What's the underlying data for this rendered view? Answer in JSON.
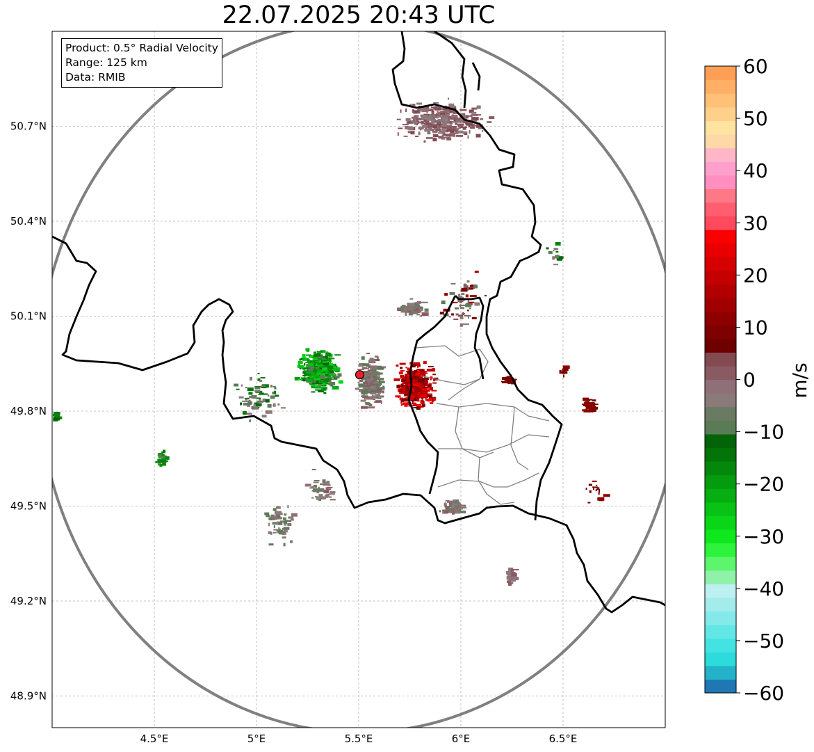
{
  "title": "22.07.2025 20:43 UTC",
  "info_box": {
    "product": "Product: 0.5° Radial Velocity",
    "range": "Range: 125 km",
    "data": "Data: RMIB"
  },
  "map": {
    "lon_range": [
      4.0,
      7.0
    ],
    "lat_range": [
      48.8,
      51.0
    ],
    "lon_ticks": [
      "4.5°E",
      "5°E",
      "5.5°E",
      "6°E",
      "6.5°E"
    ],
    "lat_ticks": [
      "50.7°N",
      "50.4°N",
      "50.1°N",
      "49.8°N",
      "49.5°N",
      "49.2°N",
      "48.9°N"
    ],
    "radar_site": {
      "lon": 5.505,
      "lat": 49.915
    },
    "range_ring_km": 125,
    "colors": {
      "border": "#000000",
      "admin_border": "#808080",
      "range_ring": "#808080",
      "grid": "#b0b0b0",
      "radar_marker": "#e8202a"
    }
  },
  "colorbar": {
    "label": "m/s",
    "ticks": [
      "60",
      "50",
      "40",
      "30",
      "20",
      "10",
      "0",
      "−10",
      "−20",
      "−30",
      "−40",
      "−50",
      "−60"
    ],
    "min": -60,
    "max": 60,
    "colors": [
      "#1f77b4",
      "#24b2c8",
      "#2cdbdb",
      "#44e3e3",
      "#63e6e6",
      "#83e9e9",
      "#a2ecec",
      "#bdf0f0",
      "#8ff2a8",
      "#5ef56e",
      "#2df43a",
      "#0ee81c",
      "#0ad517",
      "#08c214",
      "#06ae11",
      "#059b0e",
      "#04880b",
      "#037508",
      "#026406",
      "#5b7b57",
      "#6a7a63",
      "#8a7a7a",
      "#8f6f78",
      "#8a5a62",
      "#834a52",
      "#6e0000",
      "#7e0000",
      "#8e0000",
      "#a00000",
      "#b20000",
      "#c40000",
      "#d60000",
      "#e80000",
      "#fa0000",
      "#ff4a5e",
      "#ff5e70",
      "#ff7888",
      "#ff8fc0",
      "#ffa0cc",
      "#ffb6c6",
      "#ffd8a8",
      "#ffe3a0",
      "#ffd08a",
      "#ffc078",
      "#ffb066",
      "#ff9f55"
    ]
  },
  "velocity_patches": [
    {
      "lon": 5.3,
      "lat": 49.93,
      "spread_lon": 0.12,
      "spread_lat": 0.08,
      "n": 380,
      "color_range": [
        12,
        19
      ]
    },
    {
      "lon": 5.55,
      "lat": 49.9,
      "spread_lon": 0.08,
      "spread_lat": 0.1,
      "n": 220,
      "color_range": [
        19,
        23
      ]
    },
    {
      "lon": 5.77,
      "lat": 49.88,
      "spread_lon": 0.12,
      "spread_lat": 0.09,
      "n": 380,
      "color_range": [
        25,
        33
      ]
    },
    {
      "lon": 5.9,
      "lat": 50.72,
      "spread_lon": 0.28,
      "spread_lat": 0.08,
      "n": 320,
      "color_range": [
        21,
        24
      ]
    },
    {
      "lon": 5.75,
      "lat": 50.13,
      "spread_lon": 0.08,
      "spread_lat": 0.03,
      "n": 70,
      "color_range": [
        20,
        23
      ]
    },
    {
      "lon": 6.62,
      "lat": 49.82,
      "spread_lon": 0.04,
      "spread_lat": 0.03,
      "n": 40,
      "color_range": [
        25,
        27
      ]
    },
    {
      "lon": 6.22,
      "lat": 49.9,
      "spread_lon": 0.04,
      "spread_lat": 0.02,
      "n": 25,
      "color_range": [
        25,
        27
      ]
    },
    {
      "lon": 6.5,
      "lat": 49.93,
      "spread_lon": 0.02,
      "spread_lat": 0.02,
      "n": 15,
      "color_range": [
        25,
        27
      ]
    },
    {
      "lon": 5.95,
      "lat": 49.5,
      "spread_lon": 0.07,
      "spread_lat": 0.03,
      "n": 70,
      "color_range": [
        20,
        23
      ]
    },
    {
      "lon": 6.24,
      "lat": 49.28,
      "spread_lon": 0.03,
      "spread_lat": 0.03,
      "n": 30,
      "color_range": [
        21,
        23
      ]
    },
    {
      "lon": 4.53,
      "lat": 49.65,
      "spread_lon": 0.04,
      "spread_lat": 0.04,
      "n": 30,
      "color_range": [
        15,
        19
      ]
    },
    {
      "lon": 4.01,
      "lat": 49.79,
      "spread_lon": 0.01,
      "spread_lat": 0.02,
      "n": 12,
      "color_range": [
        16,
        18
      ]
    },
    {
      "lon": 5.1,
      "lat": 49.45,
      "spread_lon": 0.12,
      "spread_lat": 0.08,
      "n": 60,
      "color_range": [
        19,
        22
      ]
    },
    {
      "lon": 5.3,
      "lat": 49.55,
      "spread_lon": 0.1,
      "spread_lat": 0.07,
      "n": 40,
      "color_range": [
        20,
        23
      ]
    },
    {
      "lon": 6.0,
      "lat": 50.15,
      "spread_lon": 0.12,
      "spread_lat": 0.12,
      "n": 60,
      "color_range": [
        19,
        28
      ]
    },
    {
      "lon": 5.0,
      "lat": 49.85,
      "spread_lon": 0.15,
      "spread_lat": 0.1,
      "n": 70,
      "color_range": [
        17,
        22
      ]
    },
    {
      "lon": 6.65,
      "lat": 49.55,
      "spread_lon": 0.06,
      "spread_lat": 0.05,
      "n": 15,
      "color_range": [
        25,
        27
      ]
    },
    {
      "lon": 6.45,
      "lat": 50.3,
      "spread_lon": 0.06,
      "spread_lat": 0.05,
      "n": 15,
      "color_range": [
        16,
        22
      ]
    }
  ]
}
